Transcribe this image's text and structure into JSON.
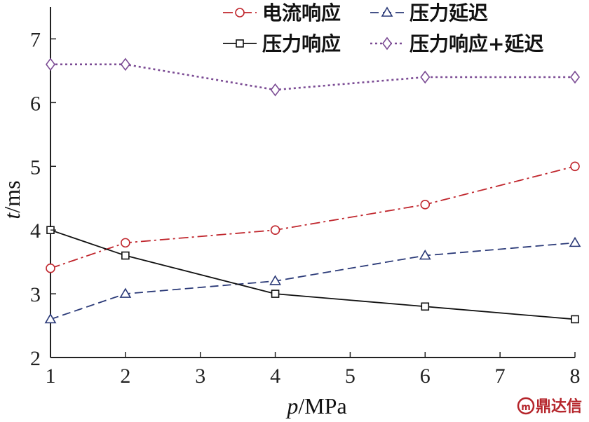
{
  "chart_data": {
    "type": "line",
    "x": [
      1,
      2,
      4,
      6,
      8
    ],
    "xticks": [
      "1",
      "2",
      "3",
      "4",
      "5",
      "6",
      "7",
      "8"
    ],
    "yticks": [
      "2",
      "3",
      "4",
      "5",
      "6",
      "7"
    ],
    "xlim": [
      1,
      8
    ],
    "ylim": [
      2,
      7.5
    ],
    "xlabel_var": "p",
    "xlabel_unit": "/MPa",
    "ylabel_var": "t",
    "ylabel_unit": "/ms",
    "legend_placement": "top",
    "series": [
      {
        "name": "电流响应",
        "values": [
          3.4,
          3.8,
          4.0,
          4.4,
          5.0
        ],
        "color": "#c0262d",
        "dash": "dashdot",
        "marker": "circle"
      },
      {
        "name": "压力延迟",
        "values": [
          2.6,
          3.0,
          3.2,
          3.6,
          3.8
        ],
        "color": "#2b3a78",
        "dash": "dashed",
        "marker": "triangle"
      },
      {
        "name": "压力响应",
        "values": [
          4.0,
          3.6,
          3.0,
          2.8,
          2.6
        ],
        "color": "#111111",
        "dash": "solid",
        "marker": "square"
      },
      {
        "name": "压力响应+延迟",
        "values": [
          6.6,
          6.6,
          6.2,
          6.4,
          6.4
        ],
        "color": "#7b4b94",
        "dash": "dotted",
        "marker": "diamond"
      }
    ]
  },
  "watermark": {
    "text": "鼎达信"
  }
}
